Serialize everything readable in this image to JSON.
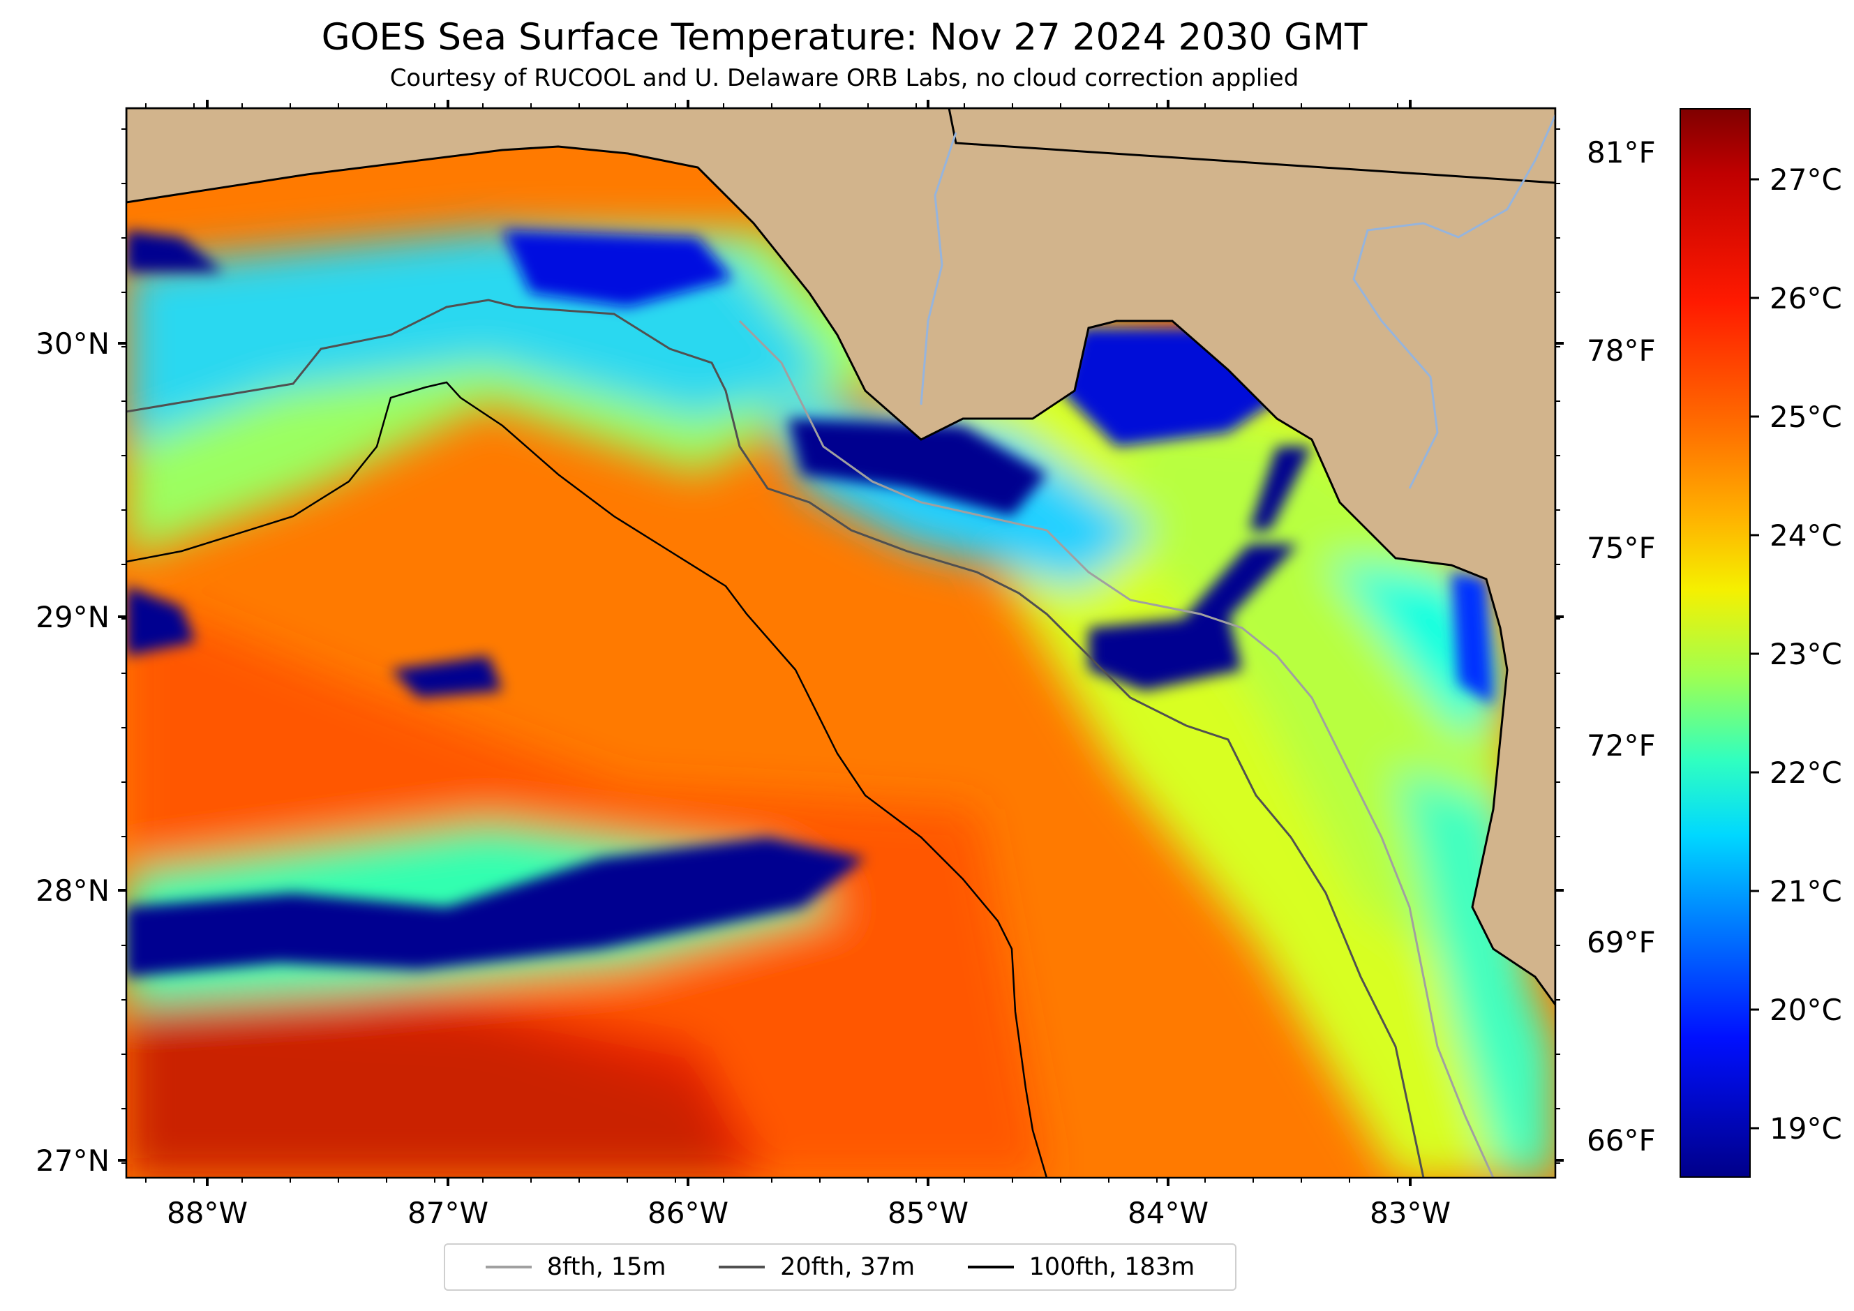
{
  "title": "GOES Sea Surface Temperature: Nov 27 2024 2030 GMT",
  "subtitle": "Courtesy of RUCOOL and U. Delaware ORB Labs, no cloud correction applied",
  "map": {
    "lat_labels": [
      "30°N",
      "29°N",
      "28°N",
      "27°N"
    ],
    "lon_labels": [
      "88°W",
      "87°W",
      "86°W",
      "85°W",
      "84°W",
      "83°W"
    ],
    "fahrenheit_labels": [
      "81°F",
      "78°F",
      "75°F",
      "72°F",
      "69°F",
      "66°F"
    ]
  },
  "colorbar": {
    "labels": [
      "27°C",
      "26°C",
      "25°C",
      "24°C",
      "23°C",
      "22°C",
      "21°C",
      "20°C",
      "19°C"
    ],
    "colormap": "jet"
  },
  "legend": {
    "items": [
      {
        "label": "8fth, 15m",
        "color": "#a0a0a0"
      },
      {
        "label": "20fth, 37m",
        "color": "#505050"
      },
      {
        "label": "100fth, 183m",
        "color": "#000000"
      }
    ]
  },
  "colors": {
    "land": "#d2b48c",
    "coastline": "#000000",
    "rivers": "#96b4dc"
  }
}
